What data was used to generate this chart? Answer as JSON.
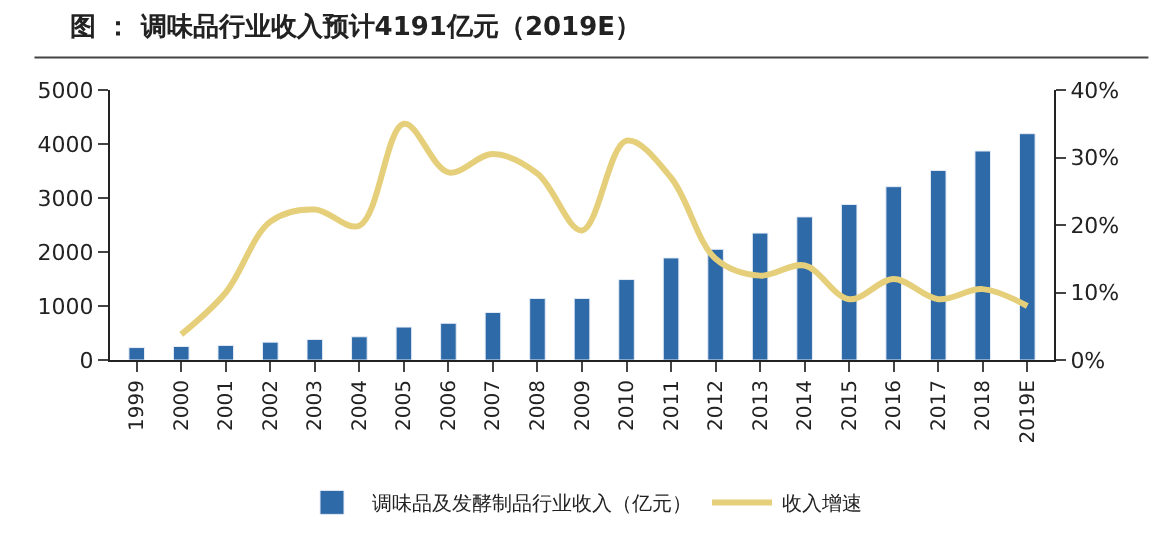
{
  "chart_data": {
    "type": "bar",
    "title": "图 ： 调味品行业收入预计4191亿元（2019E）",
    "categories": [
      "1999",
      "2000",
      "2001",
      "2002",
      "2003",
      "2004",
      "2005",
      "2006",
      "2007",
      "2008",
      "2009",
      "2010",
      "2011",
      "2012",
      "2013",
      "2014",
      "2015",
      "2016",
      "2017",
      "2018",
      "2019E"
    ],
    "series": [
      {
        "name": "调味品及发酵制品行业收入（亿元）",
        "color": "#2e6aa8",
        "values": [
          230,
          250,
          270,
          330,
          380,
          430,
          610,
          680,
          880,
          1140,
          1140,
          1490,
          1890,
          2050,
          2350,
          2650,
          2880,
          3210,
          3510,
          3870,
          4191
        ]
      },
      {
        "name": "收入增速",
        "type": "line",
        "axis": "y2",
        "color": "#e6cf7a",
        "values": [
          null,
          3.8,
          10,
          20.5,
          22.3,
          19.9,
          35,
          27.8,
          30.5,
          27.6,
          19.2,
          32.5,
          27,
          15,
          12.5,
          14,
          9,
          12,
          9,
          10.5,
          8
        ]
      }
    ],
    "ylim": [
      0,
      5000
    ],
    "yticks": [
      0,
      1000,
      2000,
      3000,
      4000,
      5000
    ],
    "y2lim": [
      0,
      40
    ],
    "y2ticks": [
      {
        "value": 0,
        "label": "0%"
      },
      {
        "value": 10,
        "label": "10%"
      },
      {
        "value": 20,
        "label": "20%"
      },
      {
        "value": 30,
        "label": "30%"
      },
      {
        "value": 40,
        "label": "40%"
      }
    ],
    "legend": "bottom"
  }
}
